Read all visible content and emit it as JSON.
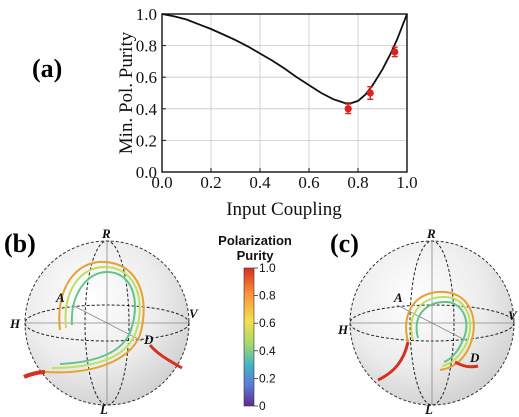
{
  "panels": {
    "a": "(a)",
    "b": "(b)",
    "c": "(c)"
  },
  "chart_data": [
    {
      "type": "line",
      "panel": "(a)",
      "xlabel": "Input Coupling",
      "ylabel": "Min. Pol. Purity",
      "xlim": [
        0.0,
        1.0
      ],
      "ylim": [
        0.0,
        1.0
      ],
      "xticks": [
        "0.0",
        "0.2",
        "0.4",
        "0.6",
        "0.8",
        "1.0"
      ],
      "yticks": [
        "0.0",
        "0.2",
        "0.4",
        "0.6",
        "0.8",
        "1.0"
      ],
      "grid": true,
      "curve_color": "#111111",
      "curve": {
        "x": [
          0.0,
          0.05,
          0.1,
          0.15,
          0.2,
          0.25,
          0.3,
          0.35,
          0.4,
          0.45,
          0.5,
          0.55,
          0.6,
          0.65,
          0.7,
          0.72,
          0.75,
          0.77,
          0.8,
          0.83,
          0.86,
          0.9,
          0.93,
          0.96,
          0.98,
          1.0
        ],
        "y": [
          1.0,
          0.985,
          0.965,
          0.935,
          0.905,
          0.87,
          0.835,
          0.795,
          0.75,
          0.705,
          0.655,
          0.6,
          0.55,
          0.5,
          0.46,
          0.45,
          0.435,
          0.435,
          0.45,
          0.49,
          0.55,
          0.65,
          0.74,
          0.84,
          0.92,
          1.0
        ]
      },
      "points_color": "#e02020",
      "points": [
        {
          "x": 0.76,
          "y": 0.4,
          "err": 0.03
        },
        {
          "x": 0.85,
          "y": 0.5,
          "err": 0.04
        },
        {
          "x": 0.95,
          "y": 0.76,
          "err": 0.03
        }
      ]
    },
    {
      "type": "poincare-sphere",
      "panel": "(b)",
      "axis_labels": {
        "top": "R",
        "bottom": "L",
        "left": "H",
        "right": "V",
        "a": "A",
        "d": "D"
      },
      "trajectories": 3
    },
    {
      "type": "poincare-sphere",
      "panel": "(c)",
      "axis_labels": {
        "top": "R",
        "bottom": "L",
        "left": "H",
        "right": "V",
        "a": "A",
        "d": "D"
      },
      "trajectories": 3
    }
  ],
  "colorbar": {
    "title_line1": "Polarization",
    "title_line2": "Purity",
    "ticks": [
      "1.0",
      "0.8",
      "0.6",
      "0.4",
      "0.2",
      "0"
    ],
    "colors": [
      "#d7301f",
      "#fc8d3c",
      "#f4e04d",
      "#a6d96a",
      "#41b6c4",
      "#5b7bd6",
      "#5e2a91"
    ]
  }
}
